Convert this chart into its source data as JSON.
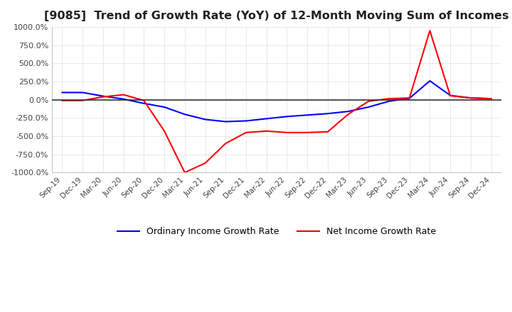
{
  "title": "[9085]  Trend of Growth Rate (YoY) of 12-Month Moving Sum of Incomes",
  "title_fontsize": 11.5,
  "ylim": [
    -1000,
    1000
  ],
  "yticks": [
    1000,
    750,
    500,
    250,
    0,
    -250,
    -500,
    -750,
    -1000
  ],
  "ytick_labels": [
    "1000.0%",
    "750.0%",
    "500.0%",
    "250.0%",
    "0.0%",
    "-250.0%",
    "-500.0%",
    "-750.0%",
    "-1000.0%"
  ],
  "background_color": "#ffffff",
  "plot_background_color": "#ffffff",
  "grid_color": "#aaaaaa",
  "legend_labels": [
    "Ordinary Income Growth Rate",
    "Net Income Growth Rate"
  ],
  "line_colors": [
    "#0000ff",
    "#ff0000"
  ],
  "dates": [
    "Sep-19",
    "Dec-19",
    "Mar-20",
    "Jun-20",
    "Sep-20",
    "Dec-20",
    "Mar-21",
    "Jun-21",
    "Sep-21",
    "Dec-21",
    "Mar-22",
    "Jun-22",
    "Sep-22",
    "Dec-22",
    "Mar-23",
    "Jun-23",
    "Sep-23",
    "Dec-23",
    "Mar-24",
    "Jun-24",
    "Sep-24",
    "Dec-24"
  ],
  "ordinary_income": [
    100,
    100,
    50,
    10,
    -50,
    -100,
    -200,
    -270,
    -300,
    -290,
    -260,
    -230,
    -210,
    -190,
    -160,
    -100,
    -20,
    20,
    260,
    60,
    25,
    15
  ],
  "net_income": [
    -10,
    -10,
    40,
    70,
    -10,
    -430,
    -1000,
    -870,
    -600,
    -450,
    -430,
    -450,
    -450,
    -440,
    -200,
    -20,
    15,
    25,
    950,
    55,
    25,
    15
  ]
}
